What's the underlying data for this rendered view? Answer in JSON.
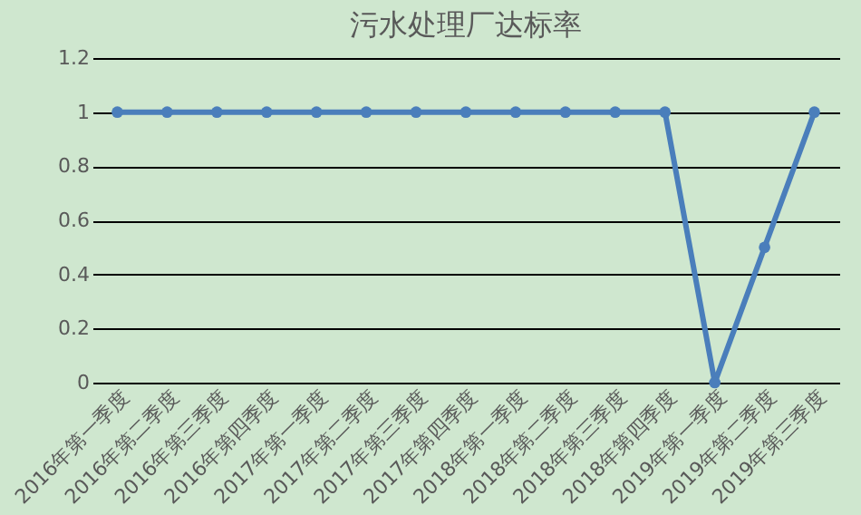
{
  "chart_data": {
    "type": "line",
    "title": "污水处理厂达标率",
    "categories": [
      "2016年第一季度",
      "2016年第二季度",
      "2016年第三季度",
      "2016年第四季度",
      "2017年第一季度",
      "2017年第二季度",
      "2017年第三季度",
      "2017年第四季度",
      "2018年第一季度",
      "2018年第二季度",
      "2018年第三季度",
      "2018年第四季度",
      "2019年第一季度",
      "2019年第二季度",
      "2019年第三季度"
    ],
    "series": [
      {
        "color": "#4a7ebb",
        "values": [
          1,
          1,
          1,
          1,
          1,
          1,
          1,
          1,
          1,
          1,
          1,
          1,
          0,
          0.5,
          1
        ]
      }
    ],
    "ylim": [
      0,
      1.2
    ],
    "yticks": [
      0,
      0.2,
      0.4,
      0.6,
      0.8,
      1,
      1.2
    ],
    "grid": "y",
    "legend": false,
    "marker": "circle",
    "line_style": "solid"
  }
}
